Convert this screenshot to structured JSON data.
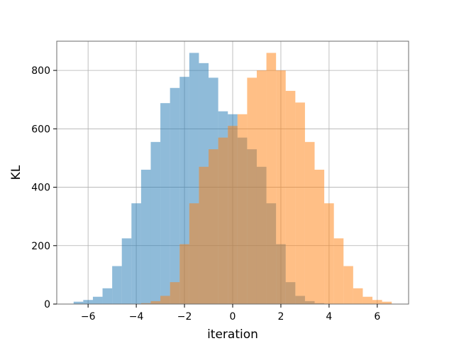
{
  "chart_data": {
    "type": "histogram",
    "xlabel": "iteration",
    "ylabel": "KL",
    "xlim": [
      -7.3,
      7.3
    ],
    "ylim": [
      0,
      900
    ],
    "xticks": [
      -6,
      -4,
      -2,
      0,
      2,
      4,
      6
    ],
    "yticks": [
      0,
      200,
      400,
      600,
      800
    ],
    "grid": true,
    "legend": "none",
    "series": [
      {
        "color": "#1f77b4",
        "opacity": 0.5,
        "bin_edges": [
          -6.6,
          -6.2,
          -5.8,
          -5.4,
          -5.0,
          -4.6,
          -4.2,
          -3.8,
          -3.4,
          -3.0,
          -2.6,
          -2.2,
          -1.8,
          -1.4,
          -1.0,
          -0.6,
          -0.2,
          0.2,
          0.6,
          1.0,
          1.4,
          1.8,
          2.2,
          2.6,
          3.0,
          3.4,
          3.8
        ],
        "counts": [
          8,
          14,
          25,
          54,
          130,
          225,
          345,
          460,
          555,
          688,
          740,
          778,
          860,
          825,
          775,
          660,
          650,
          570,
          530,
          470,
          345,
          205,
          75,
          28,
          10,
          3
        ]
      },
      {
        "color": "#ff7f0e",
        "opacity": 0.5,
        "bin_edges": [
          -3.8,
          -3.4,
          -3.0,
          -2.6,
          -2.2,
          -1.8,
          -1.4,
          -1.0,
          -0.6,
          -0.2,
          0.2,
          0.6,
          1.0,
          1.4,
          1.8,
          2.2,
          2.6,
          3.0,
          3.4,
          3.8,
          4.2,
          4.6,
          5.0,
          5.4,
          5.8,
          6.2,
          6.6
        ],
        "counts": [
          3,
          10,
          28,
          75,
          205,
          345,
          470,
          530,
          570,
          610,
          650,
          775,
          800,
          860,
          800,
          730,
          690,
          555,
          460,
          345,
          225,
          130,
          54,
          25,
          14,
          8
        ]
      }
    ]
  }
}
